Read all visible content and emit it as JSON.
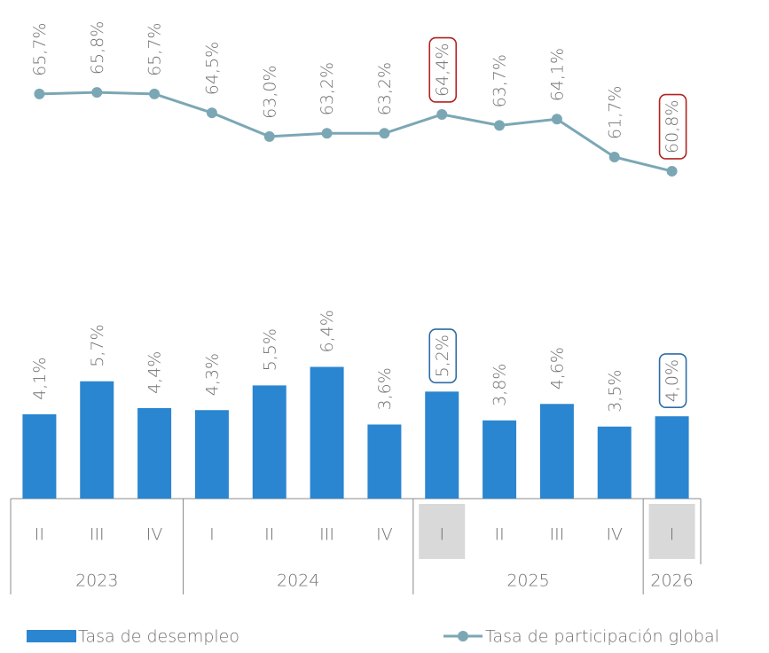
{
  "chart_data": {
    "type": "bar",
    "categories": [
      "II",
      "III",
      "IV",
      "I",
      "II",
      "III",
      "IV",
      "I",
      "II",
      "III",
      "IV",
      "I"
    ],
    "year_groups": [
      {
        "name": "2023",
        "span": 3
      },
      {
        "name": "2024",
        "span": 4
      },
      {
        "name": "2025",
        "span": 4
      },
      {
        "name": "2026",
        "span": 1
      }
    ],
    "highlight": [
      7,
      11
    ],
    "series": [
      {
        "name": "Tasa de desempleo",
        "type": "bar",
        "color": "#2a86d0",
        "highlight_color": "#2e6da4",
        "values": [
          4.1,
          5.7,
          4.4,
          4.3,
          5.5,
          6.4,
          3.6,
          5.2,
          3.8,
          4.6,
          3.5,
          4.0
        ],
        "value_labels": [
          "4,1%",
          "5,7%",
          "4,4%",
          "4,3%",
          "5,5%",
          "6,4%",
          "3,6%",
          "5,2%",
          "3,8%",
          "4,6%",
          "3,5%",
          "4,0%"
        ]
      },
      {
        "name": "Tasa de participación global",
        "type": "line",
        "axis": "y2",
        "color": "#7ba7b5",
        "highlight_color": "#b22222",
        "values": [
          65.7,
          65.8,
          65.7,
          64.5,
          63.0,
          63.2,
          63.2,
          64.4,
          63.7,
          64.1,
          61.7,
          60.8
        ],
        "value_labels": [
          "65,7%",
          "65,8%",
          "65,7%",
          "64,5%",
          "63,0%",
          "63,2%",
          "63,2%",
          "64,4%",
          "63,7%",
          "64,1%",
          "61,7%",
          "60,8%"
        ]
      }
    ],
    "ylim": [
      0,
      10
    ],
    "y2lim": [
      55,
      68
    ]
  }
}
